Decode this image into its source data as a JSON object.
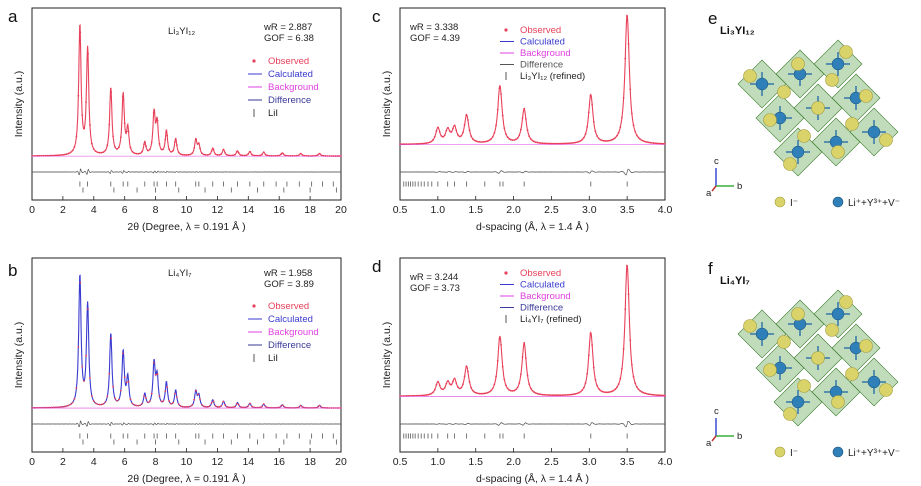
{
  "colors": {
    "observed": "#e8415a",
    "calculated": "#3a3ad0",
    "background": "#e040e0",
    "difference": "#555555",
    "axis": "#222222",
    "ticks": "#555555",
    "octahedron": "#4c9a3c",
    "iodide": "#d9d36a",
    "cation": "#2f7fb8"
  },
  "panels": [
    {
      "id": "a",
      "label": "a",
      "compound": "Li₃YI₁₂",
      "stats": [
        "wR = 2.887",
        "GOF = 6.38"
      ],
      "xlabel": "2θ (Degree, λ = 0.191 Å )",
      "ylabel": "Intensity (a.u.)",
      "xlim": [
        0,
        20
      ],
      "xticks": [
        "0",
        "2",
        "4",
        "6",
        "8",
        "10",
        "12",
        "14",
        "16",
        "18",
        "20"
      ],
      "legend": [
        {
          "name": "Observed",
          "color": "#e8415a",
          "symbol": "dot"
        },
        {
          "name": "Calculated",
          "color": "#3a3ad0",
          "symbol": "line"
        },
        {
          "name": "Background",
          "color": "#e040e0",
          "symbol": "line"
        },
        {
          "name": "Difference",
          "color": "#3a3a9a",
          "symbol": "line"
        },
        {
          "name": "LiI",
          "color": "#555555",
          "symbol": "tick"
        }
      ],
      "profile_color": "observed",
      "peaks": [
        [
          3.1,
          1.0
        ],
        [
          3.6,
          0.82
        ],
        [
          5.1,
          0.52
        ],
        [
          5.9,
          0.47
        ],
        [
          6.2,
          0.2
        ],
        [
          7.3,
          0.1
        ],
        [
          7.9,
          0.32
        ],
        [
          8.1,
          0.24
        ],
        [
          8.7,
          0.19
        ],
        [
          9.3,
          0.13
        ],
        [
          10.6,
          0.12
        ],
        [
          10.8,
          0.08
        ],
        [
          11.7,
          0.06
        ],
        [
          12.4,
          0.05
        ],
        [
          13.3,
          0.04
        ],
        [
          14.1,
          0.035
        ],
        [
          15.0,
          0.03
        ],
        [
          16.2,
          0.025
        ],
        [
          17.4,
          0.02
        ],
        [
          18.6,
          0.02
        ]
      ],
      "peak_width": 0.09,
      "background_level": 0.03,
      "reflection_rows": [
        [
          3.1,
          3.6,
          5.1,
          5.9,
          6.2,
          7.3,
          7.9,
          8.1,
          8.7,
          9.3,
          10.6,
          10.8,
          11.7,
          12.4,
          13.3,
          14.1,
          15.0,
          15.8,
          16.5,
          17.3,
          18.1,
          18.8,
          19.5
        ],
        [
          3.3,
          5.3,
          6.8,
          8.0,
          9.5,
          11.2,
          12.9,
          14.6,
          16.3,
          18.0,
          19.7
        ]
      ],
      "ylim": [
        0,
        1.1
      ]
    },
    {
      "id": "b",
      "label": "b",
      "compound": "Li₄YI₇",
      "stats": [
        "wR = 1.958",
        "GOF = 3.89"
      ],
      "xlabel": "2θ (Degree, λ = 0.191 Å )",
      "ylabel": "Intensity (a.u.)",
      "xlim": [
        0,
        20
      ],
      "xticks": [
        "0",
        "2",
        "4",
        "6",
        "8",
        "10",
        "12",
        "14",
        "16",
        "18",
        "20"
      ],
      "legend": [
        {
          "name": "Observed",
          "color": "#e8415a",
          "symbol": "dot"
        },
        {
          "name": "Calculated",
          "color": "#3a3ad0",
          "symbol": "line"
        },
        {
          "name": "Background",
          "color": "#e040e0",
          "symbol": "line"
        },
        {
          "name": "Difference",
          "color": "#3a3a9a",
          "symbol": "line"
        },
        {
          "name": "LiI",
          "color": "#555555",
          "symbol": "tick"
        }
      ],
      "profile_color": "calculated",
      "peaks": [
        [
          3.1,
          1.0
        ],
        [
          3.6,
          0.78
        ],
        [
          5.1,
          0.56
        ],
        [
          5.9,
          0.42
        ],
        [
          6.2,
          0.22
        ],
        [
          7.3,
          0.1
        ],
        [
          7.9,
          0.33
        ],
        [
          8.1,
          0.22
        ],
        [
          8.7,
          0.19
        ],
        [
          9.3,
          0.13
        ],
        [
          10.6,
          0.12
        ],
        [
          10.8,
          0.09
        ],
        [
          11.7,
          0.06
        ],
        [
          12.4,
          0.05
        ],
        [
          13.3,
          0.04
        ],
        [
          14.1,
          0.035
        ],
        [
          15.0,
          0.03
        ],
        [
          16.2,
          0.025
        ],
        [
          17.4,
          0.02
        ],
        [
          18.6,
          0.02
        ]
      ],
      "peak_width": 0.09,
      "background_level": 0.03,
      "reflection_rows": [
        [
          3.1,
          3.6,
          5.1,
          5.9,
          6.2,
          7.3,
          7.9,
          8.1,
          8.7,
          9.3,
          10.6,
          10.8,
          11.7,
          12.4,
          13.3,
          14.1,
          15.0,
          15.8,
          16.5,
          17.3,
          18.1,
          18.8,
          19.5
        ],
        [
          3.3,
          5.3,
          6.8,
          8.0,
          9.5,
          11.2,
          12.9,
          14.6,
          16.3,
          18.0,
          19.7
        ]
      ],
      "ylim": [
        0,
        1.1
      ]
    },
    {
      "id": "c",
      "label": "c",
      "compound": "",
      "stats": [
        "wR = 3.338",
        "GOF = 4.39"
      ],
      "xlabel": "d-spacing (Å, λ = 1.4 Å )",
      "ylabel": "Intensity (a.u.)",
      "xlim": [
        0.5,
        4.0
      ],
      "xticks": [
        "0.5",
        "1.0",
        "1.5",
        "2.0",
        "2.5",
        "3.0",
        "3.5",
        "4.0"
      ],
      "legend": [
        {
          "name": "Observed",
          "color": "#e8415a",
          "symbol": "dot"
        },
        {
          "name": "Calculated",
          "color": "#3a3ad0",
          "symbol": "line"
        },
        {
          "name": "Background",
          "color": "#e040e0",
          "symbol": "line"
        },
        {
          "name": "Difference",
          "color": "#555555",
          "symbol": "line"
        },
        {
          "name": "Li₃YI₁₂ (refined)",
          "color": "#555555",
          "symbol": "tick"
        }
      ],
      "profile_color": "observed",
      "peaks": [
        [
          1.0,
          0.12
        ],
        [
          1.13,
          0.1
        ],
        [
          1.22,
          0.12
        ],
        [
          1.38,
          0.22
        ],
        [
          1.82,
          0.45
        ],
        [
          2.14,
          0.27
        ],
        [
          3.02,
          0.38
        ],
        [
          3.5,
          1.0
        ]
      ],
      "peak_width": 0.035,
      "background_level": 0.12,
      "reflection_rows": [
        [
          0.55,
          0.58,
          0.61,
          0.64,
          0.67,
          0.7,
          0.74,
          0.78,
          0.82,
          0.87,
          0.92,
          1.0,
          1.13,
          1.22,
          1.38,
          1.62,
          1.82,
          1.86,
          2.14,
          3.02,
          3.5
        ]
      ],
      "ylim": [
        0,
        1.1
      ]
    },
    {
      "id": "d",
      "label": "d",
      "compound": "",
      "stats": [
        "wR = 3.244",
        "GOF = 3.73"
      ],
      "xlabel": "d-spacing (Å, λ = 1.4 Å )",
      "ylabel": "Intensity (a.u.)",
      "xlim": [
        0.5,
        4.0
      ],
      "xticks": [
        "0.5",
        "1.0",
        "1.5",
        "2.0",
        "2.5",
        "3.0",
        "3.5",
        "4.0"
      ],
      "legend": [
        {
          "name": "Observed",
          "color": "#e8415a",
          "symbol": "dot"
        },
        {
          "name": "Calculated",
          "color": "#3a3ad0",
          "symbol": "line"
        },
        {
          "name": "Background",
          "color": "#e040e0",
          "symbol": "line"
        },
        {
          "name": "Difference",
          "color": "#3a3a9a",
          "symbol": "line"
        },
        {
          "name": "Li₄YI₇ (refined)",
          "color": "#555555",
          "symbol": "tick"
        }
      ],
      "profile_color": "observed",
      "peaks": [
        [
          1.0,
          0.1
        ],
        [
          1.13,
          0.09
        ],
        [
          1.22,
          0.11
        ],
        [
          1.38,
          0.22
        ],
        [
          1.82,
          0.45
        ],
        [
          2.14,
          0.4
        ],
        [
          3.02,
          0.48
        ],
        [
          3.5,
          1.0
        ]
      ],
      "peak_width": 0.035,
      "background_level": 0.12,
      "reflection_rows": [
        [
          0.55,
          0.58,
          0.61,
          0.64,
          0.67,
          0.7,
          0.74,
          0.78,
          0.82,
          0.87,
          0.92,
          1.0,
          1.13,
          1.22,
          1.38,
          1.62,
          1.82,
          1.86,
          2.14,
          3.02,
          3.5
        ]
      ],
      "ylim": [
        0,
        1.1
      ]
    }
  ],
  "structures": [
    {
      "id": "e",
      "label": "e",
      "title": "Li₃YI₁₂",
      "legend_anion": "I⁻",
      "legend_cation": "Li⁺+Y³⁺+V⁻",
      "axes": [
        "c",
        "a",
        "b"
      ]
    },
    {
      "id": "f",
      "label": "f",
      "title": "Li₄YI₇",
      "legend_anion": "I⁻",
      "legend_cation": "Li⁺+Y³⁺+V⁻",
      "axes": [
        "c",
        "a",
        "b"
      ]
    }
  ],
  "chart_data": [
    {
      "type": "line",
      "title": "",
      "panel": "a",
      "xlabel": "2θ (Degree, λ = 0.191 Å )",
      "ylabel": "Intensity (a.u.)",
      "xlim": [
        0,
        20
      ],
      "series": [
        {
          "name": "Observed"
        },
        {
          "name": "Calculated"
        },
        {
          "name": "Background"
        },
        {
          "name": "Difference"
        }
      ],
      "annotations": [
        "Li₃YI₁₂",
        "wR = 2.887",
        "GOF = 6.38",
        "LiI"
      ]
    },
    {
      "type": "line",
      "title": "",
      "panel": "b",
      "xlabel": "2θ (Degree, λ = 0.191 Å )",
      "ylabel": "Intensity (a.u.)",
      "xlim": [
        0,
        20
      ],
      "series": [
        {
          "name": "Observed"
        },
        {
          "name": "Calculated"
        },
        {
          "name": "Background"
        },
        {
          "name": "Difference"
        }
      ],
      "annotations": [
        "Li₄YI₇",
        "wR = 1.958",
        "GOF = 3.89",
        "LiI"
      ]
    },
    {
      "type": "line",
      "title": "",
      "panel": "c",
      "xlabel": "d-spacing (Å, λ = 1.4 Å )",
      "ylabel": "Intensity (a.u.)",
      "xlim": [
        0.5,
        4.0
      ],
      "series": [
        {
          "name": "Observed"
        },
        {
          "name": "Calculated"
        },
        {
          "name": "Background"
        },
        {
          "name": "Difference"
        }
      ],
      "annotations": [
        "wR = 3.338",
        "GOF = 4.39",
        "Li₃YI₁₂ (refined)"
      ]
    },
    {
      "type": "line",
      "title": "",
      "panel": "d",
      "xlabel": "d-spacing (Å, λ = 1.4 Å )",
      "ylabel": "Intensity (a.u.)",
      "xlim": [
        0.5,
        4.0
      ],
      "series": [
        {
          "name": "Observed"
        },
        {
          "name": "Calculated"
        },
        {
          "name": "Background"
        },
        {
          "name": "Difference"
        }
      ],
      "annotations": [
        "wR = 3.244",
        "GOF = 3.73",
        "Li₄YI₇ (refined)"
      ]
    }
  ]
}
